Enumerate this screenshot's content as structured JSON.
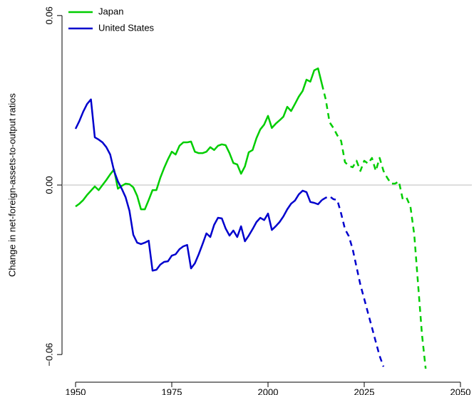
{
  "chart_data": {
    "type": "line",
    "ylabel": "Change in net-foreign-assets-to-output ratios",
    "x": [
      1950,
      1951,
      1952,
      1953,
      1954,
      1955,
      1956,
      1957,
      1958,
      1959,
      1960,
      1961,
      1962,
      1963,
      1964,
      1965,
      1966,
      1967,
      1968,
      1969,
      1970,
      1971,
      1972,
      1973,
      1974,
      1975,
      1976,
      1977,
      1978,
      1979,
      1980,
      1981,
      1982,
      1983,
      1984,
      1985,
      1986,
      1987,
      1988,
      1989,
      1990,
      1991,
      1992,
      1993,
      1994,
      1995,
      1996,
      1997,
      1998,
      1999,
      2000,
      2001,
      2002,
      2003,
      2004,
      2005,
      2006,
      2007,
      2008,
      2009,
      2010,
      2011,
      2012,
      2013,
      2014,
      2015,
      2016,
      2017,
      2018,
      2019,
      2020,
      2021,
      2022,
      2023,
      2024,
      2025,
      2026,
      2027,
      2028,
      2029,
      2030,
      2031,
      2032,
      2033,
      2034,
      2035,
      2036,
      2037,
      2038,
      2039,
      2040,
      2041
    ],
    "series": [
      {
        "name": "Japan",
        "color": "#00cd00",
        "values": [
          -0.0076,
          -0.0066,
          -0.0053,
          -0.0035,
          -0.002,
          -0.0005,
          -0.0018,
          0,
          0.0018,
          0.0038,
          0.0055,
          -0.0013,
          -0.0003,
          0.0005,
          0.0003,
          -0.0008,
          -0.0038,
          -0.0086,
          -0.0086,
          -0.0053,
          -0.0018,
          -0.0018,
          0.0025,
          0.006,
          0.0091,
          0.0118,
          0.0108,
          0.0139,
          0.0151,
          0.0151,
          0.0154,
          0.0118,
          0.0113,
          0.0113,
          0.0118,
          0.0134,
          0.0124,
          0.0139,
          0.0144,
          0.0141,
          0.0113,
          0.0078,
          0.0073,
          0.004,
          0.0066,
          0.0116,
          0.0124,
          0.0166,
          0.0197,
          0.0214,
          0.0245,
          0.0202,
          0.0217,
          0.0229,
          0.0242,
          0.0277,
          0.0262,
          0.0287,
          0.0313,
          0.0333,
          0.0373,
          0.0366,
          0.0406,
          0.0413,
          0.0358,
          0.0303,
          0.0222,
          0.0202,
          0.0176,
          0.0156,
          0.0081,
          0.0068,
          0.0063,
          0.0086,
          0.005,
          0.0086,
          0.0076,
          0.0096,
          0.005,
          0.0096,
          0.005,
          0.0025,
          0.0005,
          0.0005,
          0.0013,
          -0.005,
          -0.0045,
          -0.0076,
          -0.0176,
          -0.0353,
          -0.0529,
          -0.0655
        ]
      },
      {
        "name": "United States",
        "color": "#0000cd",
        "values": [
          0.0199,
          0.0227,
          0.026,
          0.0287,
          0.0303,
          0.0169,
          0.0161,
          0.0151,
          0.0134,
          0.0108,
          0.005,
          0.0013,
          -0.0013,
          -0.0043,
          -0.0091,
          -0.0176,
          -0.0204,
          -0.0209,
          -0.0204,
          -0.0197,
          -0.0303,
          -0.03,
          -0.0282,
          -0.0272,
          -0.027,
          -0.025,
          -0.0245,
          -0.0227,
          -0.0217,
          -0.0212,
          -0.0295,
          -0.0277,
          -0.0245,
          -0.0209,
          -0.0171,
          -0.0184,
          -0.0141,
          -0.0116,
          -0.0118,
          -0.0154,
          -0.0179,
          -0.0161,
          -0.0184,
          -0.0146,
          -0.0199,
          -0.0179,
          -0.0156,
          -0.0131,
          -0.0116,
          -0.0124,
          -0.0101,
          -0.0159,
          -0.0146,
          -0.0131,
          -0.0111,
          -0.0086,
          -0.0066,
          -0.0055,
          -0.0033,
          -0.002,
          -0.0025,
          -0.006,
          -0.0063,
          -0.0068,
          -0.0053,
          -0.0045,
          -0.004,
          -0.005,
          -0.0053,
          -0.0101,
          -0.0156,
          -0.0181,
          -0.0227,
          -0.029,
          -0.0353,
          -0.0403,
          -0.0454,
          -0.0504,
          -0.0555,
          -0.0605,
          -0.0643,
          null,
          null,
          null,
          null,
          null,
          null,
          null,
          null,
          null,
          null,
          null
        ]
      }
    ],
    "forecast_from": 2014,
    "reference_line": 0,
    "xlim": [
      1946,
      2054
    ],
    "xticks": [
      1950,
      1975,
      2000,
      2025,
      2050
    ],
    "ylim": [
      -0.065,
      0.065
    ],
    "yticks": [
      {
        "value": -0.06,
        "label": "−0.06"
      },
      {
        "value": 0,
        "label": "0.00"
      },
      0.06
    ],
    "legend": "top-left"
  }
}
